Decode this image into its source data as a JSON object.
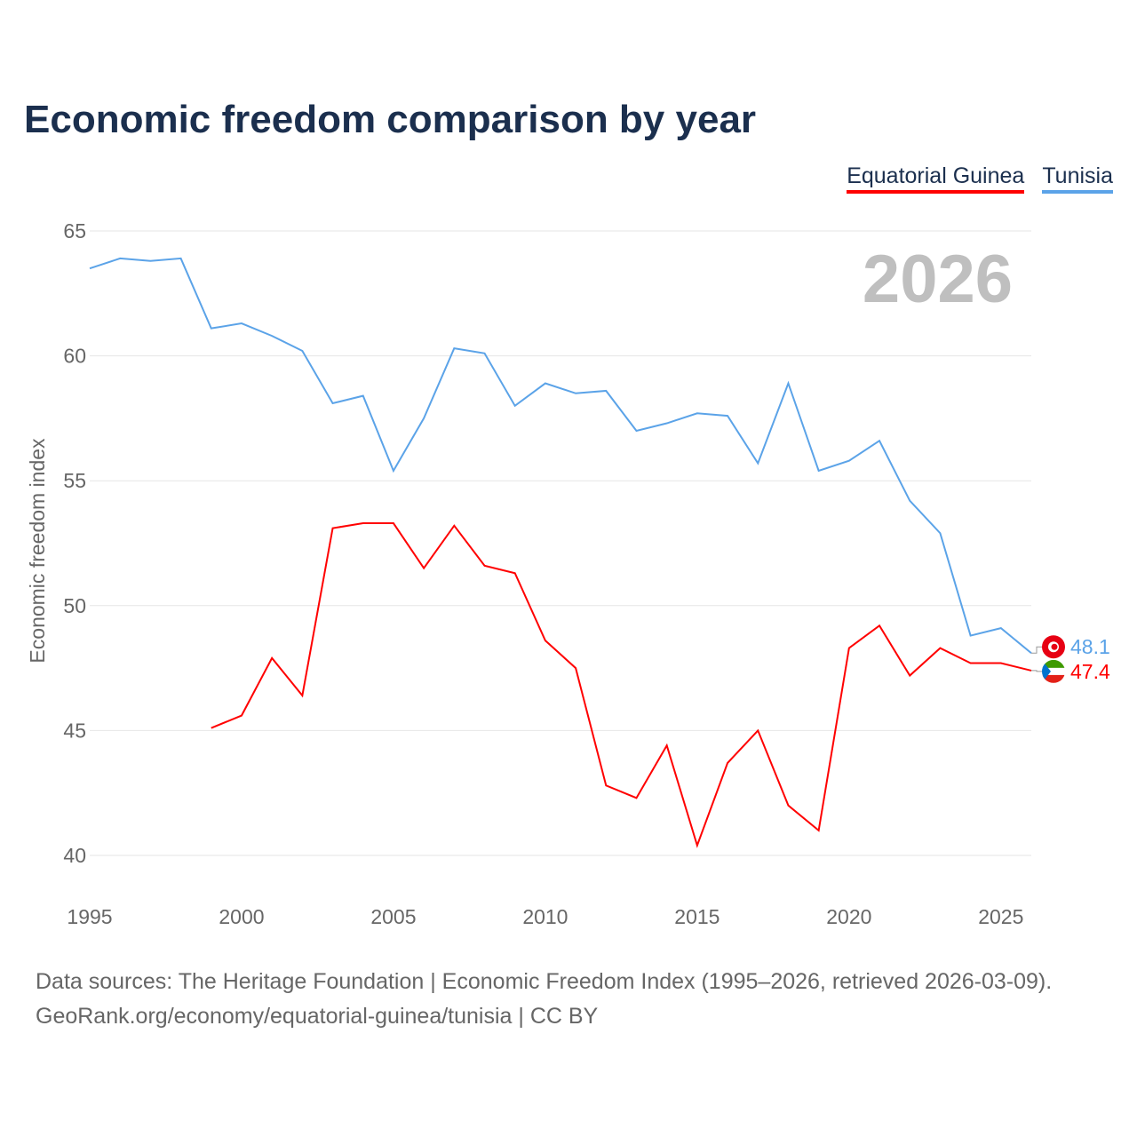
{
  "title": "Economic freedom comparison by year",
  "year_badge": "2026",
  "source_line1": "Data sources: The Heritage Foundation | Economic Freedom Index (1995–2026, retrieved 2026-03-09).",
  "source_line2": "GeoRank.org/economy/equatorial-guinea/tunisia | CC BY",
  "chart_data": {
    "type": "line",
    "title": "Economic freedom comparison by year",
    "xlabel": "",
    "ylabel": "Economic freedom index",
    "xlim": [
      1995,
      2026
    ],
    "ylim": [
      40,
      65
    ],
    "xticks": [
      "1995",
      "2000",
      "2005",
      "2010",
      "2015",
      "2020",
      "2025"
    ],
    "yticks": [
      "40",
      "45",
      "50",
      "55",
      "60",
      "65"
    ],
    "grid": true,
    "legend_position": "top-right",
    "series": [
      {
        "name": "Equatorial Guinea",
        "color": "#ff0000",
        "end_label": "47.4",
        "x": [
          1999,
          2000,
          2001,
          2002,
          2003,
          2004,
          2005,
          2006,
          2007,
          2008,
          2009,
          2010,
          2011,
          2012,
          2013,
          2014,
          2015,
          2016,
          2017,
          2018,
          2019,
          2020,
          2021,
          2022,
          2023,
          2024,
          2025,
          2026
        ],
        "values": [
          45.1,
          45.6,
          47.9,
          46.4,
          53.1,
          53.3,
          53.3,
          51.5,
          53.2,
          51.6,
          51.3,
          48.6,
          47.5,
          42.8,
          42.3,
          44.4,
          40.4,
          43.7,
          45.0,
          42.0,
          41.0,
          48.3,
          49.2,
          47.2,
          48.3,
          47.7,
          47.7,
          47.4
        ]
      },
      {
        "name": "Tunisia",
        "color": "#5ba3e8",
        "end_label": "48.1",
        "x": [
          1995,
          1996,
          1997,
          1998,
          1999,
          2000,
          2001,
          2002,
          2003,
          2004,
          2005,
          2006,
          2007,
          2008,
          2009,
          2010,
          2011,
          2012,
          2013,
          2014,
          2015,
          2016,
          2017,
          2018,
          2019,
          2020,
          2021,
          2022,
          2023,
          2024,
          2025,
          2026
        ],
        "values": [
          63.5,
          63.9,
          63.8,
          63.9,
          61.1,
          61.3,
          60.8,
          60.2,
          58.1,
          58.4,
          55.4,
          57.5,
          60.3,
          60.1,
          58.0,
          58.9,
          58.5,
          58.6,
          57.0,
          57.3,
          57.7,
          57.6,
          55.7,
          58.9,
          55.4,
          55.8,
          56.6,
          54.2,
          52.9,
          48.8,
          49.1,
          48.1
        ]
      }
    ]
  }
}
